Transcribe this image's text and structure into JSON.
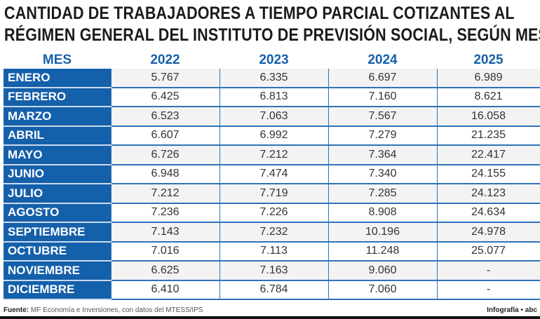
{
  "title_line1": "CANTIDAD DE TRABAJADORES A TIEMPO PARCIAL COTIZANTES AL",
  "title_line2": "RÉGIMEN GENERAL DEL INSTITUTO DE PREVISIÓN SOCIAL, SEGÚN MES",
  "chart_data": {
    "type": "table",
    "columns": [
      "MES",
      "2022",
      "2023",
      "2024",
      "2025"
    ],
    "rows": [
      [
        "ENERO",
        "5.767",
        "6.335",
        "6.697",
        "6.989"
      ],
      [
        "FEBRERO",
        "6.425",
        "6.813",
        "7.160",
        "8.621"
      ],
      [
        "MARZO",
        "6.523",
        "7.063",
        "7.567",
        "16.058"
      ],
      [
        "ABRIL",
        "6.607",
        "6.992",
        "7.279",
        "21.235"
      ],
      [
        "MAYO",
        "6.726",
        "7.212",
        "7.364",
        "22.417"
      ],
      [
        "JUNIO",
        "6.948",
        "7.474",
        "7.340",
        "24.155"
      ],
      [
        "JULIO",
        "7.212",
        "7.719",
        "7.285",
        "24.123"
      ],
      [
        "AGOSTO",
        "7.236",
        "7.226",
        "8.908",
        "24.634"
      ],
      [
        "SEPTIEMBRE",
        "7.143",
        "7.232",
        "10.196",
        "24.978"
      ],
      [
        "OCTUBRE",
        "7.016",
        "7.113",
        "11.248",
        "25.077"
      ],
      [
        "NOVIEMBRE",
        "6.625",
        "7.163",
        "9.060",
        "-"
      ],
      [
        "DICIEMBRE",
        "6.410",
        "6.784",
        "7.060",
        "-"
      ]
    ]
  },
  "footer": {
    "source_label": "Fuente:",
    "source_text": " MF Economía e Inversiones, con datos del MTESS/IPS",
    "credit": "Infografía • abc"
  },
  "colors": {
    "accent": "#1560aa",
    "row_alt": "#f3f3f3"
  }
}
